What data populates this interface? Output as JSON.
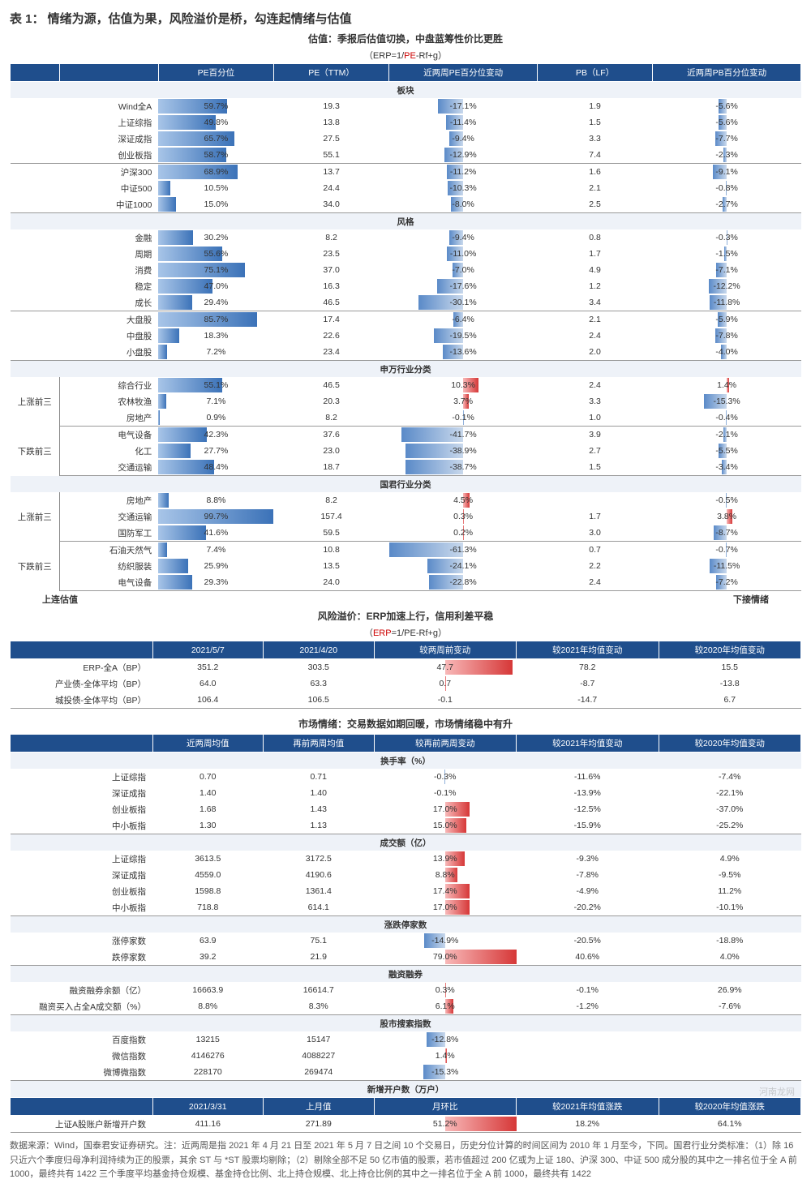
{
  "title": "表 1：  情绪为源，估值为果，风险溢价是桥，勾连起情绪与估值",
  "sec1": {
    "subtitle": "估值：季报后估值切换，中盘蓝筹性价比更胜",
    "formula_pre": "（ERP=1/",
    "formula_red": "PE",
    "formula_post": "-Rf+g）",
    "headers": [
      "",
      "PE百分位",
      "PE（TTM）",
      "近两周PE百分位变动",
      "PB（LF）",
      "近两周PB百分位变动"
    ],
    "seclabel_bk": "板块",
    "rows_bk": [
      [
        "Wind全A",
        "59.7%",
        "19.3",
        "-17.1%",
        "1.9",
        "-5.6%"
      ],
      [
        "上证综指",
        "49.8%",
        "13.8",
        "-11.4%",
        "1.5",
        "-5.6%"
      ],
      [
        "深证成指",
        "65.7%",
        "27.5",
        "-9.4%",
        "3.3",
        "-7.7%"
      ],
      [
        "创业板指",
        "58.7%",
        "55.1",
        "-12.9%",
        "7.4",
        "-2.3%"
      ],
      [
        "沪深300",
        "68.9%",
        "13.7",
        "-11.2%",
        "1.6",
        "-9.1%"
      ],
      [
        "中证500",
        "10.5%",
        "24.4",
        "-10.3%",
        "2.1",
        "-0.8%"
      ],
      [
        "中证1000",
        "15.0%",
        "34.0",
        "-8.0%",
        "2.5",
        "-2.7%"
      ]
    ],
    "seclabel_fg": "风格",
    "rows_fg": [
      [
        "金融",
        "30.2%",
        "8.2",
        "-9.4%",
        "0.8",
        "-0.3%"
      ],
      [
        "周期",
        "55.6%",
        "23.5",
        "-11.0%",
        "1.7",
        "-1.5%"
      ],
      [
        "消费",
        "75.1%",
        "37.0",
        "-7.0%",
        "4.9",
        "-7.1%"
      ],
      [
        "稳定",
        "47.0%",
        "16.3",
        "-17.6%",
        "1.2",
        "-12.2%"
      ],
      [
        "成长",
        "29.4%",
        "46.5",
        "-30.1%",
        "3.4",
        "-11.8%"
      ],
      [
        "大盘股",
        "85.7%",
        "17.4",
        "-6.4%",
        "2.1",
        "-5.9%"
      ],
      [
        "中盘股",
        "18.3%",
        "22.6",
        "-19.5%",
        "2.4",
        "-7.8%"
      ],
      [
        "小盘股",
        "7.2%",
        "23.4",
        "-13.6%",
        "2.0",
        "-4.0%"
      ]
    ],
    "seclabel_sw": "申万行业分类",
    "grp_up": "上涨前三",
    "grp_dn": "下跌前三",
    "rows_sw_up": [
      [
        "综合行业",
        "55.1%",
        "46.5",
        "10.3%",
        "2.4",
        "1.4%"
      ],
      [
        "农林牧渔",
        "7.1%",
        "20.3",
        "3.7%",
        "3.3",
        "-15.3%"
      ],
      [
        "房地产",
        "0.9%",
        "8.2",
        "-0.1%",
        "1.0",
        "-0.4%"
      ]
    ],
    "rows_sw_dn": [
      [
        "电气设备",
        "42.3%",
        "37.6",
        "-41.7%",
        "3.9",
        "-2.1%"
      ],
      [
        "化工",
        "27.7%",
        "23.0",
        "-38.9%",
        "2.7",
        "-5.5%"
      ],
      [
        "交通运输",
        "48.4%",
        "18.7",
        "-38.7%",
        "1.5",
        "-3.4%"
      ]
    ],
    "seclabel_gj": "国君行业分类",
    "rows_gj_up": [
      [
        "房地产",
        "8.8%",
        "8.2",
        "4.5%",
        "",
        "-0.5%"
      ],
      [
        "交通运输",
        "99.7%",
        "157.4",
        "0.3%",
        "1.7",
        "3.8%"
      ],
      [
        "国防军工",
        "41.6%",
        "59.5",
        "0.2%",
        "3.0",
        "-8.7%"
      ]
    ],
    "rows_gj_dn": [
      [
        "石油天然气",
        "7.4%",
        "10.8",
        "-61.3%",
        "0.7",
        "-0.7%"
      ],
      [
        "纺织服装",
        "25.9%",
        "13.5",
        "-24.1%",
        "2.2",
        "-11.5%"
      ],
      [
        "电气设备",
        "29.3%",
        "24.0",
        "-22.8%",
        "2.4",
        "-7.2%"
      ]
    ]
  },
  "sec2": {
    "left": "上连估值",
    "right": "下接情绪",
    "subtitle": "风险溢价：ERP加速上行，信用利差平稳",
    "formula_pre": "（",
    "formula_red": "ERP",
    "formula_post": "=1/PE-Rf+g）",
    "headers": [
      "",
      "2021/5/7",
      "2021/4/20",
      "较两周前变动",
      "较2021年均值变动",
      "较2020年均值变动"
    ],
    "rows": [
      [
        "ERP-全A（BP）",
        "351.2",
        "303.5",
        "47.7",
        "78.2",
        "15.5"
      ],
      [
        "产业债-全体平均（BP）",
        "64.0",
        "63.3",
        "0.7",
        "-8.7",
        "-13.8"
      ],
      [
        "城投债-全体平均（BP）",
        "106.4",
        "106.5",
        "-0.1",
        "-14.7",
        "6.7"
      ]
    ]
  },
  "sec3": {
    "subtitle": "市场情绪：交易数据如期回暖，市场情绪稳中有升",
    "headers": [
      "",
      "近两周均值",
      "再前两周均值",
      "较再前两周变动",
      "较2021年均值变动",
      "较2020年均值变动"
    ],
    "seclabel_hs": "换手率（%）",
    "rows_hs": [
      [
        "上证综指",
        "0.70",
        "0.71",
        "-0.3%",
        "-11.6%",
        "-7.4%"
      ],
      [
        "深证成指",
        "1.40",
        "1.40",
        "-0.1%",
        "-13.9%",
        "-22.1%"
      ],
      [
        "创业板指",
        "1.68",
        "1.43",
        "17.0%",
        "-12.5%",
        "-37.0%"
      ],
      [
        "中小板指",
        "1.30",
        "1.13",
        "15.0%",
        "-15.9%",
        "-25.2%"
      ]
    ],
    "seclabel_cj": "成交额（亿）",
    "rows_cj": [
      [
        "上证综指",
        "3613.5",
        "3172.5",
        "13.9%",
        "-9.3%",
        "4.9%"
      ],
      [
        "深证成指",
        "4559.0",
        "4190.6",
        "8.8%",
        "-7.8%",
        "-9.5%"
      ],
      [
        "创业板指",
        "1598.8",
        "1361.4",
        "17.4%",
        "-4.9%",
        "11.2%"
      ],
      [
        "中小板指",
        "718.8",
        "614.1",
        "17.0%",
        "-20.2%",
        "-10.1%"
      ]
    ],
    "seclabel_zd": "涨跌停家数",
    "rows_zd": [
      [
        "涨停家数",
        "63.9",
        "75.1",
        "-14.9%",
        "-20.5%",
        "-18.8%"
      ],
      [
        "跌停家数",
        "39.2",
        "21.9",
        "79.0%",
        "40.6%",
        "4.0%"
      ]
    ],
    "seclabel_rz": "融资融券",
    "rows_rz": [
      [
        "融资融券余额（亿）",
        "16663.9",
        "16614.7",
        "0.3%",
        "-0.1%",
        "26.9%"
      ],
      [
        "融资买入占全A成交额（%）",
        "8.8%",
        "8.3%",
        "6.1%",
        "-1.2%",
        "-7.6%"
      ]
    ],
    "seclabel_ss": "股市搜索指数",
    "rows_ss": [
      [
        "百度指数",
        "13215",
        "15147",
        "-12.8%",
        "",
        ""
      ],
      [
        "微信指数",
        "4146276",
        "4088227",
        "1.4%",
        "",
        ""
      ],
      [
        "微博微指数",
        "228170",
        "269474",
        "-15.3%",
        "",
        ""
      ]
    ],
    "seclabel_xz": "新增开户数（万户）",
    "headers2": [
      "",
      "2021/3/31",
      "上月值",
      "月环比",
      "较2021年均值涨跌",
      "较2020年均值涨跌"
    ],
    "rows_xz": [
      [
        "上证A股账户新增开户数",
        "411.16",
        "271.89",
        "51.2%",
        "18.2%",
        "64.1%"
      ]
    ]
  },
  "footnote": "数据来源：Wind，国泰君安证券研究。注：近两周是指 2021 年 4 月 21 日至 2021 年 5 月 7 日之间 10 个交易日，历史分位计算的时间区间为 2010 年 1 月至今，下同。国君行业分类标准：（1）除 16 只近六个季度归母净利润持续为正的股票，其余 ST 与 *ST 股票均剔除；（2）剔除全部不足 50 亿市值的股票，若市值超过 200 亿或为上证 180、沪深 300、中证 500 成分股的其中之一排名位于全 A 前 1000，最终共有 1422 三个季度平均基金持仓规模、基金持仓比例、北上持仓规模、北上持仓比例的其中之一排名位于全 A 前 1000，最终共有 1422",
  "watermark": "河南龙网",
  "style": {
    "bar_pos_max": 100,
    "bar_chg_scale": 50
  }
}
